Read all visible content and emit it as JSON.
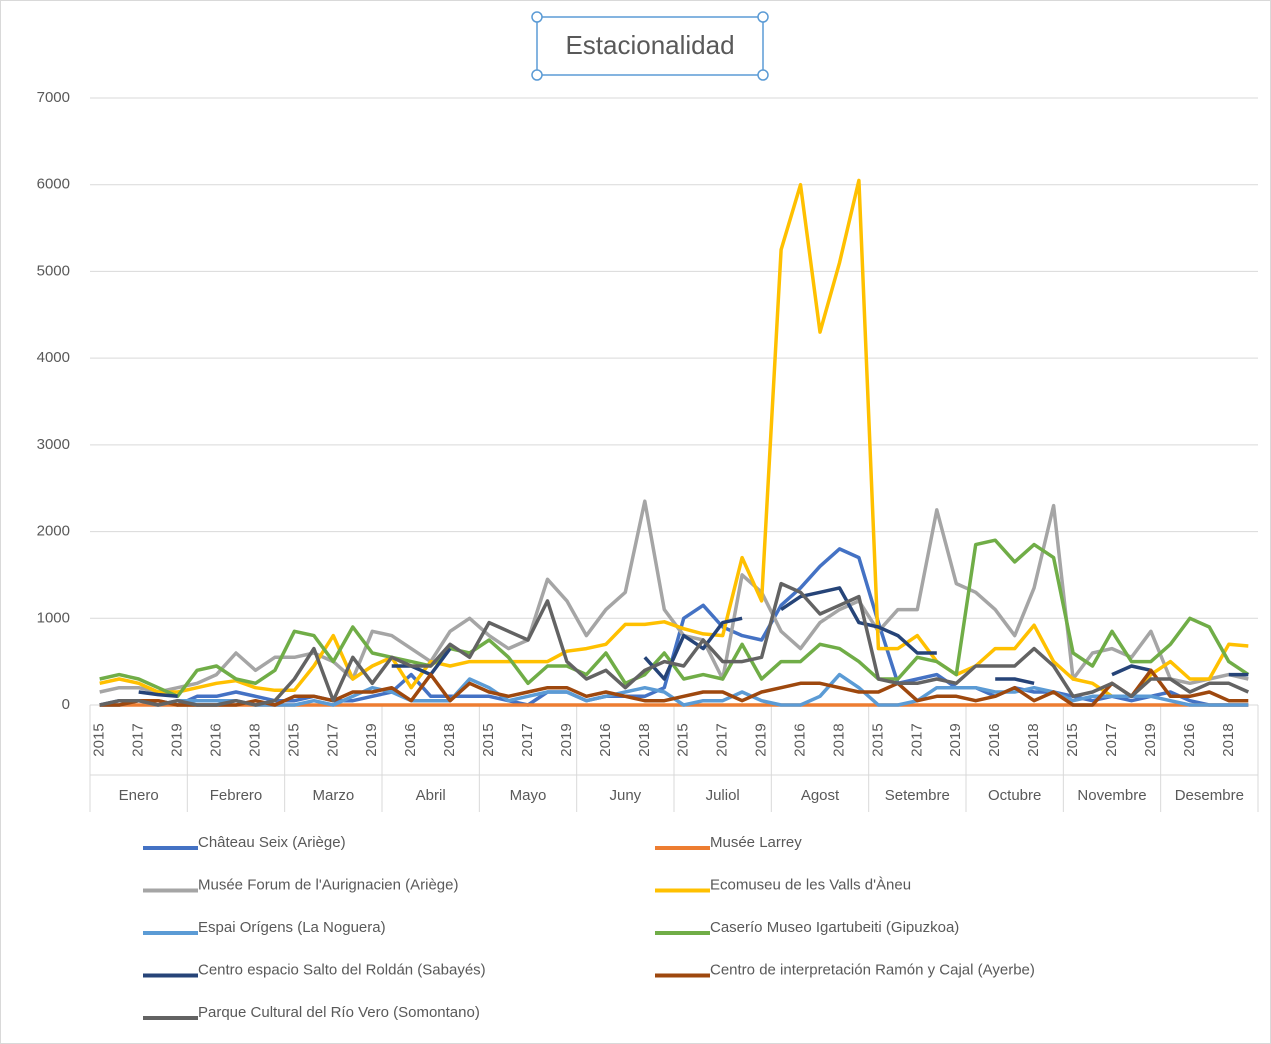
{
  "chart_data": {
    "type": "line",
    "title": "Estacionalidad",
    "categories": [
      "2015",
      null,
      "2017",
      null,
      "2019",
      null,
      "2016",
      null,
      "2018",
      null,
      "2015",
      null,
      "2017",
      null,
      "2019",
      null,
      "2016",
      null,
      "2018",
      null,
      "2015",
      null,
      "2017",
      null,
      "2019",
      null,
      "2016",
      null,
      "2018",
      null,
      "2015",
      null,
      "2017",
      null,
      "2019",
      null,
      "2016",
      null,
      "2018",
      null,
      "2015",
      null,
      "2017",
      null,
      "2019",
      null,
      "2016",
      null,
      "2018",
      null,
      "2015",
      null,
      "2017",
      null,
      "2019",
      null,
      "2016",
      null,
      "2018",
      null
    ],
    "groups": [
      "Enero",
      "Febrero",
      "Marzo",
      "Abril",
      "Mayo",
      "Juny",
      "Juliol",
      "Agost",
      "Setembre",
      "Octubre",
      "Novembre",
      "Desembre"
    ],
    "ylim": [
      0,
      7000
    ],
    "yticks": [
      0,
      1000,
      2000,
      3000,
      4000,
      5000,
      6000,
      7000
    ],
    "grid": true,
    "series": [
      {
        "name": "Château Seix (Ariège)",
        "color": "#4472c4",
        "values": [
          0,
          50,
          50,
          50,
          0,
          100,
          100,
          150,
          100,
          50,
          50,
          100,
          50,
          50,
          100,
          150,
          350,
          100,
          100,
          100,
          100,
          50,
          0,
          150,
          150,
          50,
          100,
          100,
          100,
          200,
          1000,
          1150,
          900,
          800,
          750,
          1150,
          1350,
          1600,
          1800,
          1700,
          950,
          250,
          300,
          350,
          200,
          200,
          100,
          200,
          150,
          150,
          100,
          50,
          100,
          50,
          100,
          150,
          50,
          0,
          0,
          0
        ]
      },
      {
        "name": "Musée Larrey",
        "color": "#ed7d31",
        "values": [
          0,
          0,
          0,
          0,
          0,
          0,
          0,
          0,
          0,
          0,
          0,
          0,
          0,
          0,
          0,
          0,
          0,
          0,
          0,
          0,
          0,
          0,
          0,
          0,
          0,
          0,
          0,
          0,
          0,
          0,
          0,
          0,
          0,
          0,
          0,
          0,
          0,
          0,
          0,
          0,
          0,
          0,
          0,
          0,
          0,
          0,
          0,
          0,
          0,
          0,
          0,
          0,
          0,
          0,
          0,
          0,
          0,
          0,
          0,
          0
        ]
      },
      {
        "name": "Musée Forum de l'Aurignacien (Ariège)",
        "color": "#a5a5a5",
        "values": [
          150,
          200,
          200,
          150,
          200,
          250,
          350,
          600,
          400,
          550,
          550,
          600,
          500,
          300,
          850,
          800,
          650,
          500,
          850,
          1000,
          800,
          650,
          750,
          1450,
          1200,
          800,
          1100,
          1300,
          2350,
          1100,
          800,
          750,
          300,
          1500,
          1300,
          850,
          650,
          950,
          1100,
          1200,
          850,
          1100,
          1100,
          2250,
          1400,
          1300,
          1100,
          800,
          1350,
          2300,
          300,
          600,
          650,
          550,
          850,
          300,
          250,
          300,
          350,
          300
        ]
      },
      {
        "name": "Ecomuseu de les Valls d'Àneu",
        "color": "#ffc000",
        "values": [
          250,
          300,
          250,
          150,
          150,
          200,
          250,
          280,
          200,
          170,
          170,
          450,
          800,
          300,
          450,
          550,
          200,
          500,
          450,
          500,
          500,
          500,
          500,
          500,
          620,
          650,
          700,
          930,
          930,
          960,
          880,
          820,
          800,
          1700,
          1200,
          5250,
          6000,
          4300,
          5100,
          6050,
          650,
          650,
          800,
          500,
          350,
          450,
          650,
          650,
          920,
          500,
          300,
          250,
          100,
          100,
          350,
          500,
          300,
          300,
          700,
          680
        ]
      },
      {
        "name": "Espai Orígens (La Noguera)",
        "color": "#5b9bd5",
        "values": [
          0,
          0,
          50,
          0,
          50,
          50,
          50,
          50,
          0,
          0,
          0,
          50,
          0,
          100,
          200,
          150,
          50,
          50,
          50,
          300,
          200,
          50,
          100,
          150,
          150,
          50,
          100,
          150,
          200,
          150,
          0,
          50,
          50,
          150,
          50,
          0,
          0,
          100,
          350,
          200,
          0,
          0,
          50,
          200,
          200,
          200,
          150,
          150,
          200,
          150,
          50,
          100,
          100,
          100,
          100,
          50,
          0,
          0,
          0,
          0
        ]
      },
      {
        "name": "Caserío Museo Igartubeiti (Gipuzkoa)",
        "color": "#70ad47",
        "values": [
          300,
          350,
          300,
          200,
          100,
          400,
          450,
          300,
          250,
          400,
          850,
          800,
          500,
          900,
          600,
          550,
          500,
          450,
          650,
          600,
          750,
          550,
          250,
          450,
          450,
          350,
          600,
          250,
          350,
          600,
          300,
          350,
          300,
          700,
          300,
          500,
          500,
          700,
          650,
          500,
          300,
          300,
          550,
          500,
          350,
          1850,
          1900,
          1650,
          1850,
          1700,
          600,
          450,
          850,
          500,
          500,
          700,
          1000,
          900,
          500,
          350
        ]
      },
      {
        "name": "Centro espacio Salto del Roldán (Sabayés)",
        "color": "#264478",
        "values": [
          null,
          null,
          150,
          120,
          100,
          null,
          null,
          null,
          null,
          null,
          null,
          null,
          null,
          null,
          null,
          450,
          450,
          350,
          650,
          null,
          null,
          null,
          null,
          null,
          null,
          null,
          null,
          null,
          550,
          300,
          800,
          650,
          950,
          1000,
          null,
          1100,
          1250,
          1300,
          1350,
          950,
          900,
          800,
          600,
          600,
          null,
          null,
          300,
          300,
          250,
          null,
          null,
          null,
          350,
          450,
          400,
          null,
          null,
          null,
          350,
          350
        ]
      },
      {
        "name": "Centro de interpretación Ramón y Cajal (Ayerbe)",
        "color": "#9e480e",
        "values": [
          0,
          0,
          50,
          50,
          0,
          0,
          0,
          0,
          50,
          0,
          100,
          100,
          50,
          150,
          150,
          200,
          50,
          350,
          50,
          250,
          150,
          100,
          150,
          200,
          200,
          100,
          150,
          100,
          50,
          50,
          100,
          150,
          150,
          50,
          150,
          200,
          250,
          250,
          200,
          150,
          150,
          250,
          50,
          100,
          100,
          50,
          100,
          200,
          50,
          150,
          0,
          0,
          250,
          100,
          400,
          100,
          100,
          150,
          50,
          50
        ]
      },
      {
        "name": "Parque Cultural del Río Vero (Somontano)",
        "color": "#636363",
        "values": [
          0,
          50,
          50,
          0,
          50,
          0,
          0,
          50,
          0,
          50,
          300,
          650,
          50,
          550,
          250,
          550,
          450,
          450,
          700,
          550,
          950,
          850,
          750,
          1200,
          500,
          300,
          400,
          200,
          400,
          500,
          450,
          750,
          500,
          500,
          550,
          1400,
          1300,
          1050,
          1150,
          1250,
          300,
          250,
          250,
          300,
          250,
          450,
          450,
          450,
          650,
          450,
          100,
          150,
          250,
          100,
          300,
          300,
          150,
          250,
          250,
          150
        ]
      }
    ]
  }
}
